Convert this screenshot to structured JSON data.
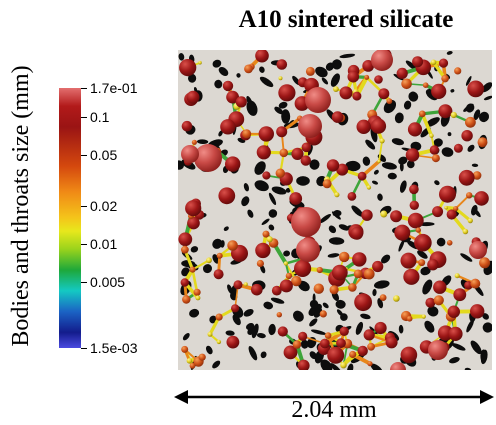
{
  "figure": {
    "title": "A10 sintered silicate",
    "colorbar_label": "Bodies and throats size (mm)",
    "colorbar_ticks": [
      {
        "label": "1.7e-01",
        "value": 0.17
      },
      {
        "label": "0.1",
        "value": 0.1
      },
      {
        "label": "0.05",
        "value": 0.05
      },
      {
        "label": "0.02",
        "value": 0.02
      },
      {
        "label": "0.01",
        "value": 0.01
      },
      {
        "label": "0.005",
        "value": 0.005
      },
      {
        "label": "1.5e-03",
        "value": 0.0015
      }
    ],
    "scale_bar": "2.04 mm",
    "colors": {
      "body_dark": "#8e1212",
      "body_mid": "#b52020",
      "body_light": "#d14a44",
      "throat_yellow": "#e3d91e",
      "throat_green": "#3ea53a",
      "throat_orange": "#e8861a",
      "solid": "#dcd8d2",
      "pore": "#0d0d0d"
    }
  }
}
